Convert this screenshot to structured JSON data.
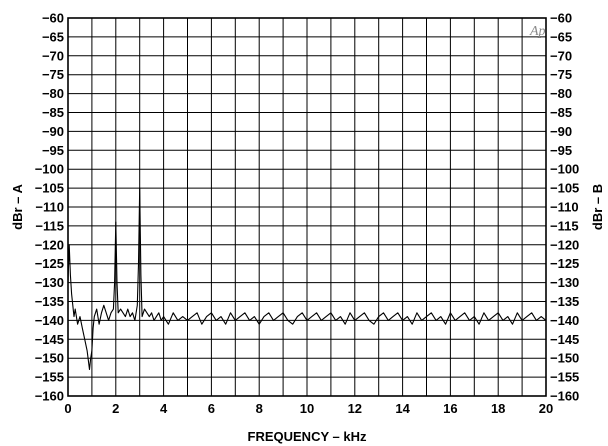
{
  "chart_data": {
    "type": "line",
    "title": "",
    "xlabel": "FREQUENCY – kHz",
    "ylabel_left": "dBr – A",
    "ylabel_right": "dBr – B",
    "logo": "Ap",
    "xlim": [
      0,
      20
    ],
    "ylim": [
      -160,
      -60
    ],
    "x_ticks": [
      0,
      2,
      4,
      6,
      8,
      10,
      12,
      14,
      16,
      18,
      20
    ],
    "y_ticks": [
      -60,
      -65,
      -70,
      -75,
      -80,
      -85,
      -90,
      -95,
      -100,
      -105,
      -110,
      -115,
      -120,
      -125,
      -130,
      -135,
      -140,
      -145,
      -150,
      -155,
      -160
    ],
    "x_grid_step": 1,
    "y_grid_step": 5,
    "grid": true,
    "series": [
      {
        "x": [
          0.0,
          0.05,
          0.1,
          0.15,
          0.2,
          0.25,
          0.3,
          0.4,
          0.5,
          0.6,
          0.7,
          0.8,
          0.9,
          0.95,
          1.0,
          1.05,
          1.1,
          1.2,
          1.3,
          1.4,
          1.5,
          1.6,
          1.7,
          1.8,
          1.9,
          1.95,
          2.0,
          2.05,
          2.1,
          2.2,
          2.3,
          2.4,
          2.5,
          2.6,
          2.7,
          2.8,
          2.9,
          2.95,
          3.0,
          3.05,
          3.1,
          3.2,
          3.3,
          3.4,
          3.5,
          3.6,
          3.7,
          3.8,
          3.9,
          4.0,
          4.2,
          4.4,
          4.6,
          4.8,
          5.0,
          5.2,
          5.4,
          5.6,
          5.8,
          6.0,
          6.2,
          6.4,
          6.6,
          6.8,
          7.0,
          7.2,
          7.4,
          7.6,
          7.8,
          8.0,
          8.2,
          8.4,
          8.6,
          8.8,
          9.0,
          9.2,
          9.4,
          9.6,
          9.8,
          10.0,
          10.2,
          10.4,
          10.6,
          10.8,
          11.0,
          11.2,
          11.4,
          11.6,
          11.8,
          12.0,
          12.2,
          12.4,
          12.6,
          12.8,
          13.0,
          13.2,
          13.4,
          13.6,
          13.8,
          14.0,
          14.2,
          14.4,
          14.6,
          14.8,
          15.0,
          15.2,
          15.4,
          15.6,
          15.8,
          16.0,
          16.2,
          16.4,
          16.6,
          16.8,
          17.0,
          17.2,
          17.4,
          17.6,
          17.8,
          18.0,
          18.2,
          18.4,
          18.6,
          18.8,
          19.0,
          19.2,
          19.4,
          19.6,
          19.8,
          20.0
        ],
        "y": [
          -130,
          -120,
          -128,
          -133,
          -136,
          -139,
          -137,
          -141,
          -139,
          -142,
          -145,
          -148,
          -153,
          -150,
          -148,
          -142,
          -139,
          -137,
          -141,
          -138,
          -136,
          -138,
          -140,
          -138,
          -137,
          -130,
          -114,
          -130,
          -138,
          -137,
          -138,
          -139,
          -137,
          -139,
          -138,
          -140,
          -136,
          -125,
          -105,
          -128,
          -139,
          -137,
          -138,
          -139,
          -138,
          -140,
          -139,
          -138,
          -140,
          -139,
          -141,
          -138,
          -140,
          -139,
          -140,
          -139,
          -138,
          -141,
          -139,
          -138,
          -140,
          -139,
          -141,
          -138,
          -140,
          -139,
          -138,
          -140,
          -139,
          -141,
          -139,
          -138,
          -140,
          -139,
          -138,
          -140,
          -141,
          -139,
          -138,
          -140,
          -139,
          -138,
          -140,
          -139,
          -138,
          -140,
          -139,
          -141,
          -138,
          -140,
          -139,
          -138,
          -140,
          -141,
          -139,
          -138,
          -140,
          -139,
          -138,
          -140,
          -139,
          -141,
          -138,
          -140,
          -139,
          -138,
          -140,
          -139,
          -141,
          -138,
          -140,
          -139,
          -138,
          -140,
          -139,
          -141,
          -138,
          -140,
          -139,
          -138,
          -140,
          -139,
          -141,
          -138,
          -140,
          -139,
          -138,
          -140,
          -139,
          -140
        ]
      }
    ]
  }
}
